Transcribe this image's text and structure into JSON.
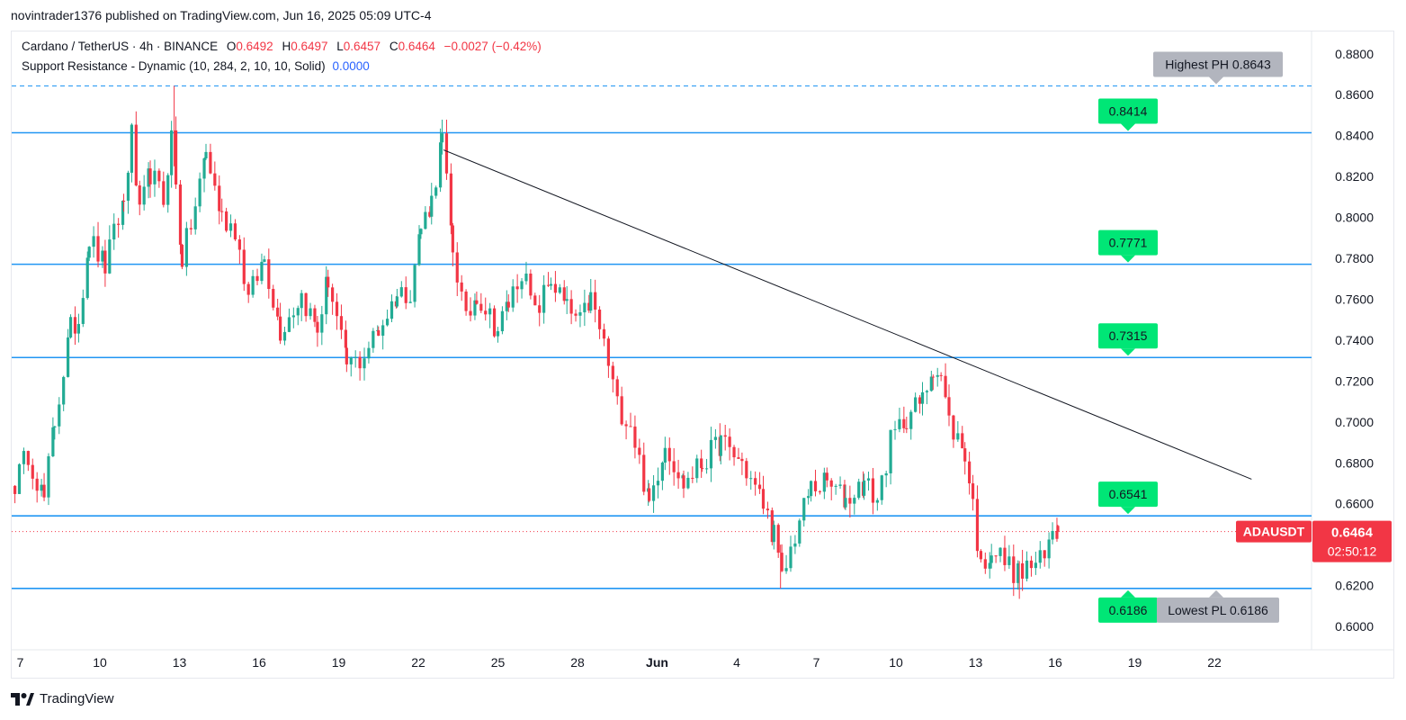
{
  "header": {
    "published": "novintrader1376 published on TradingView.com, Jun 16, 2025 05:09 UTC-4"
  },
  "legend": {
    "symbol": "Cardano / TetherUS · 4h · BINANCE",
    "open_label": "O",
    "open": "0.6492",
    "high_label": "H",
    "high": "0.6497",
    "low_label": "L",
    "low": "0.6457",
    "close_label": "C",
    "close": "0.6464",
    "change": "−0.0027 (−0.42%)",
    "indicator": "Support Resistance - Dynamic (10, 284, 2, 10, 10, Solid)",
    "indicator_value": "0.0000"
  },
  "footer": {
    "brand": "TradingView"
  },
  "colors": {
    "up": "#22ab94",
    "down": "#f23645",
    "level": "#2196f3",
    "label_green": "#00e676",
    "label_gray": "#b2b5be",
    "price_tag": "#f23645"
  },
  "chart_data": {
    "type": "candlestick",
    "symbol": "ADAUSDT",
    "timeframe": "4h",
    "ylim": [
      0.5886,
      0.8909
    ],
    "y_ticks": [
      "0.8800",
      "0.8600",
      "0.8400",
      "0.8200",
      "0.8000",
      "0.7800",
      "0.7600",
      "0.7400",
      "0.7200",
      "0.7000",
      "0.6800",
      "0.6600",
      "0.6200",
      "0.6000"
    ],
    "x_ticks": [
      {
        "label": "7",
        "day": 7
      },
      {
        "label": "10",
        "day": 10
      },
      {
        "label": "13",
        "day": 13
      },
      {
        "label": "16",
        "day": 16
      },
      {
        "label": "19",
        "day": 19
      },
      {
        "label": "22",
        "day": 22
      },
      {
        "label": "25",
        "day": 25
      },
      {
        "label": "28",
        "day": 28
      },
      {
        "label": "Jun",
        "day": 31
      },
      {
        "label": "4",
        "day": 34
      },
      {
        "label": "7",
        "day": 37
      },
      {
        "label": "10",
        "day": 40
      },
      {
        "label": "13",
        "day": 43
      },
      {
        "label": "16",
        "day": 46
      },
      {
        "label": "19",
        "day": 49
      },
      {
        "label": "22",
        "day": 52
      }
    ],
    "levels": [
      {
        "value": 0.8414,
        "label": "0.8414"
      },
      {
        "value": 0.7771,
        "label": "0.7771"
      },
      {
        "value": 0.7315,
        "label": "0.7315"
      },
      {
        "value": 0.6541,
        "label": "0.6541"
      },
      {
        "value": 0.6186,
        "label": "0.6186"
      }
    ],
    "highest_ph": {
      "value": 0.8643,
      "label": "Highest PH 0.8643"
    },
    "lowest_pl": {
      "value": 0.6186,
      "label": "Lowest PL 0.6186"
    },
    "trendline": {
      "start": {
        "day": 22.95,
        "price": 0.833
      },
      "end": {
        "day": 53.4,
        "price": 0.672
      }
    },
    "last_price": {
      "symbol": "ADAUSDT",
      "value": 0.6464,
      "label": "0.6464",
      "countdown": "02:50:12"
    },
    "anchors": [
      [
        6.8,
        0.67
      ],
      [
        7.3,
        0.685
      ],
      [
        7.9,
        0.662
      ],
      [
        8.3,
        0.7
      ],
      [
        8.9,
        0.745
      ],
      [
        9.2,
        0.75
      ],
      [
        9.6,
        0.79
      ],
      [
        10.2,
        0.776
      ],
      [
        10.9,
        0.808
      ],
      [
        11.2,
        0.84
      ],
      [
        11.5,
        0.8
      ],
      [
        11.9,
        0.822
      ],
      [
        12.4,
        0.808
      ],
      [
        12.7,
        0.84
      ],
      [
        13.1,
        0.78
      ],
      [
        13.6,
        0.805
      ],
      [
        14.0,
        0.832
      ],
      [
        14.6,
        0.8
      ],
      [
        15.1,
        0.795
      ],
      [
        15.6,
        0.76
      ],
      [
        16.2,
        0.78
      ],
      [
        16.8,
        0.745
      ],
      [
        17.6,
        0.762
      ],
      [
        18.2,
        0.745
      ],
      [
        18.6,
        0.77
      ],
      [
        19.3,
        0.728
      ],
      [
        19.8,
        0.73
      ],
      [
        20.5,
        0.745
      ],
      [
        21.2,
        0.762
      ],
      [
        21.7,
        0.765
      ],
      [
        22.1,
        0.795
      ],
      [
        22.5,
        0.808
      ],
      [
        22.9,
        0.838
      ],
      [
        23.3,
        0.785
      ],
      [
        23.8,
        0.748
      ],
      [
        24.2,
        0.763
      ],
      [
        25.0,
        0.745
      ],
      [
        25.4,
        0.758
      ],
      [
        25.9,
        0.775
      ],
      [
        26.4,
        0.752
      ],
      [
        27.0,
        0.77
      ],
      [
        27.6,
        0.755
      ],
      [
        28.1,
        0.748
      ],
      [
        28.5,
        0.76
      ],
      [
        29.0,
        0.738
      ],
      [
        29.5,
        0.708
      ],
      [
        30.0,
        0.7
      ],
      [
        30.7,
        0.66
      ],
      [
        31.3,
        0.69
      ],
      [
        32.0,
        0.67
      ],
      [
        32.7,
        0.68
      ],
      [
        33.4,
        0.69
      ],
      [
        34.2,
        0.68
      ],
      [
        35.0,
        0.66
      ],
      [
        35.4,
        0.645
      ],
      [
        35.7,
        0.622
      ],
      [
        36.2,
        0.645
      ],
      [
        36.8,
        0.668
      ],
      [
        37.4,
        0.67
      ],
      [
        38.1,
        0.662
      ],
      [
        38.8,
        0.67
      ],
      [
        39.3,
        0.662
      ],
      [
        39.8,
        0.69
      ],
      [
        40.4,
        0.703
      ],
      [
        41.0,
        0.71
      ],
      [
        41.4,
        0.728
      ],
      [
        41.7,
        0.722
      ],
      [
        42.0,
        0.7
      ],
      [
        42.6,
        0.685
      ],
      [
        42.9,
        0.66
      ],
      [
        43.2,
        0.628
      ],
      [
        43.6,
        0.638
      ],
      [
        44.1,
        0.632
      ],
      [
        44.6,
        0.625
      ],
      [
        45.1,
        0.63
      ],
      [
        45.6,
        0.632
      ],
      [
        45.9,
        0.648
      ],
      [
        46.1,
        0.6464
      ]
    ]
  }
}
